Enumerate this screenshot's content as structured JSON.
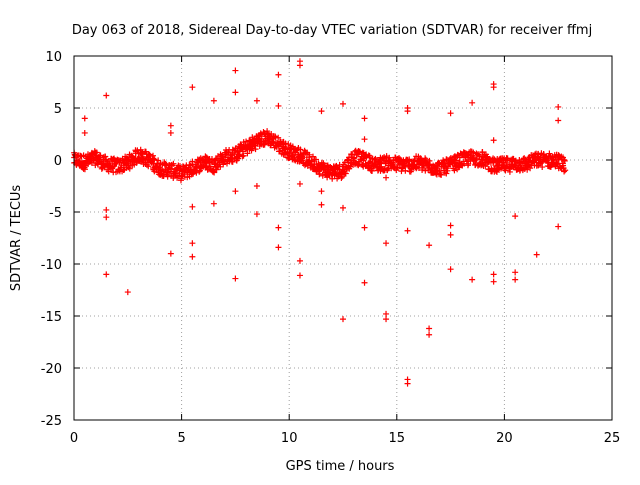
{
  "chart_data": {
    "type": "scatter",
    "title": "Day 063 of 2018, Sidereal Day-to-day VTEC variation (SDTVAR) for receiver ffmj",
    "xlabel": "GPS time / hours",
    "ylabel": "SDTVAR / TECUs",
    "xlim": [
      0,
      25
    ],
    "ylim": [
      -25,
      10
    ],
    "x_ticks": [
      0,
      5,
      10,
      15,
      20,
      25
    ],
    "y_ticks": [
      10,
      5,
      0,
      -5,
      -10,
      -15,
      -20,
      -25
    ],
    "x_tick_labels": [
      "0",
      "5",
      "10",
      "15",
      "20",
      "25"
    ],
    "y_tick_labels": [
      "10",
      "5",
      "0",
      "-5",
      "-10",
      "-15",
      "-20",
      "-25"
    ],
    "grid": true,
    "marker": "+",
    "series": [
      {
        "name": "SDTVAR",
        "color": "#ff0000",
        "band": {
          "description": "dense continuous band of points near zero (approximate centerline, hour -> TECU)",
          "step_hours": 0.05,
          "spread_tecu": 0.7,
          "centerline": [
            [
              0.0,
              0.0
            ],
            [
              0.5,
              -0.2
            ],
            [
              1.0,
              0.2
            ],
            [
              1.5,
              -0.4
            ],
            [
              2.0,
              -0.6
            ],
            [
              2.5,
              -0.3
            ],
            [
              3.0,
              0.5
            ],
            [
              3.5,
              0.0
            ],
            [
              4.0,
              -0.8
            ],
            [
              4.5,
              -1.0
            ],
            [
              5.0,
              -1.3
            ],
            [
              5.5,
              -0.8
            ],
            [
              6.0,
              -0.2
            ],
            [
              6.5,
              -0.5
            ],
            [
              7.0,
              0.3
            ],
            [
              7.5,
              0.5
            ],
            [
              8.0,
              1.2
            ],
            [
              8.5,
              1.8
            ],
            [
              9.0,
              2.2
            ],
            [
              9.5,
              1.5
            ],
            [
              10.0,
              0.8
            ],
            [
              10.5,
              0.5
            ],
            [
              11.0,
              -0.2
            ],
            [
              11.5,
              -0.8
            ],
            [
              12.0,
              -1.2
            ],
            [
              12.5,
              -1.0
            ],
            [
              13.0,
              0.3
            ],
            [
              13.5,
              0.0
            ],
            [
              14.0,
              -0.5
            ],
            [
              14.5,
              -0.3
            ],
            [
              15.0,
              -0.4
            ],
            [
              15.5,
              -0.5
            ],
            [
              16.0,
              -0.3
            ],
            [
              16.5,
              -0.6
            ],
            [
              17.0,
              -0.8
            ],
            [
              17.5,
              -0.5
            ],
            [
              18.0,
              0.0
            ],
            [
              18.5,
              0.2
            ],
            [
              19.0,
              0.1
            ],
            [
              19.5,
              -0.6
            ],
            [
              20.0,
              -0.5
            ],
            [
              20.5,
              -0.4
            ],
            [
              21.0,
              -0.4
            ],
            [
              21.5,
              0.0
            ],
            [
              22.0,
              0.0
            ],
            [
              22.5,
              -0.1
            ],
            [
              22.8,
              -0.5
            ]
          ]
        },
        "outliers": [
          [
            0.5,
            4.0
          ],
          [
            0.5,
            2.6
          ],
          [
            1.5,
            6.2
          ],
          [
            1.5,
            -4.8
          ],
          [
            1.5,
            -5.5
          ],
          [
            1.5,
            -11.0
          ],
          [
            2.5,
            -12.7
          ],
          [
            4.5,
            3.3
          ],
          [
            4.5,
            2.6
          ],
          [
            4.5,
            -9.0
          ],
          [
            5.5,
            7.0
          ],
          [
            5.5,
            -4.5
          ],
          [
            5.5,
            -8.0
          ],
          [
            5.5,
            -9.3
          ],
          [
            6.5,
            5.7
          ],
          [
            6.5,
            -4.2
          ],
          [
            7.5,
            8.6
          ],
          [
            7.5,
            6.5
          ],
          [
            7.5,
            -3.0
          ],
          [
            7.5,
            -11.4
          ],
          [
            8.5,
            5.7
          ],
          [
            8.5,
            -2.5
          ],
          [
            8.5,
            -5.2
          ],
          [
            9.5,
            8.2
          ],
          [
            9.5,
            5.2
          ],
          [
            9.5,
            -6.5
          ],
          [
            9.5,
            -8.4
          ],
          [
            10.5,
            9.5
          ],
          [
            10.5,
            9.1
          ],
          [
            10.5,
            -2.3
          ],
          [
            10.5,
            -9.7
          ],
          [
            10.5,
            -11.1
          ],
          [
            11.5,
            4.7
          ],
          [
            11.5,
            -3.0
          ],
          [
            11.5,
            -4.3
          ],
          [
            12.5,
            5.4
          ],
          [
            12.5,
            -4.6
          ],
          [
            12.5,
            -15.3
          ],
          [
            13.5,
            4.0
          ],
          [
            13.5,
            2.0
          ],
          [
            13.5,
            -6.5
          ],
          [
            13.5,
            -11.8
          ],
          [
            14.5,
            -1.7
          ],
          [
            14.5,
            -8.0
          ],
          [
            14.5,
            -14.8
          ],
          [
            14.5,
            -15.3
          ],
          [
            15.5,
            5.0
          ],
          [
            15.5,
            4.7
          ],
          [
            15.5,
            -6.8
          ],
          [
            15.5,
            -21.1
          ],
          [
            15.5,
            -21.5
          ],
          [
            16.5,
            -8.2
          ],
          [
            16.5,
            -16.2
          ],
          [
            16.5,
            -16.8
          ],
          [
            17.5,
            4.5
          ],
          [
            17.5,
            -6.3
          ],
          [
            17.5,
            -7.2
          ],
          [
            17.5,
            -10.5
          ],
          [
            18.5,
            5.5
          ],
          [
            18.5,
            -11.5
          ],
          [
            19.5,
            7.3
          ],
          [
            19.5,
            7.0
          ],
          [
            19.5,
            1.9
          ],
          [
            19.5,
            -11.0
          ],
          [
            19.5,
            -11.7
          ],
          [
            20.5,
            -5.4
          ],
          [
            20.5,
            -10.8
          ],
          [
            20.5,
            -11.5
          ],
          [
            21.5,
            -9.1
          ],
          [
            22.5,
            5.1
          ],
          [
            22.5,
            3.8
          ],
          [
            22.5,
            -6.4
          ]
        ]
      }
    ]
  }
}
